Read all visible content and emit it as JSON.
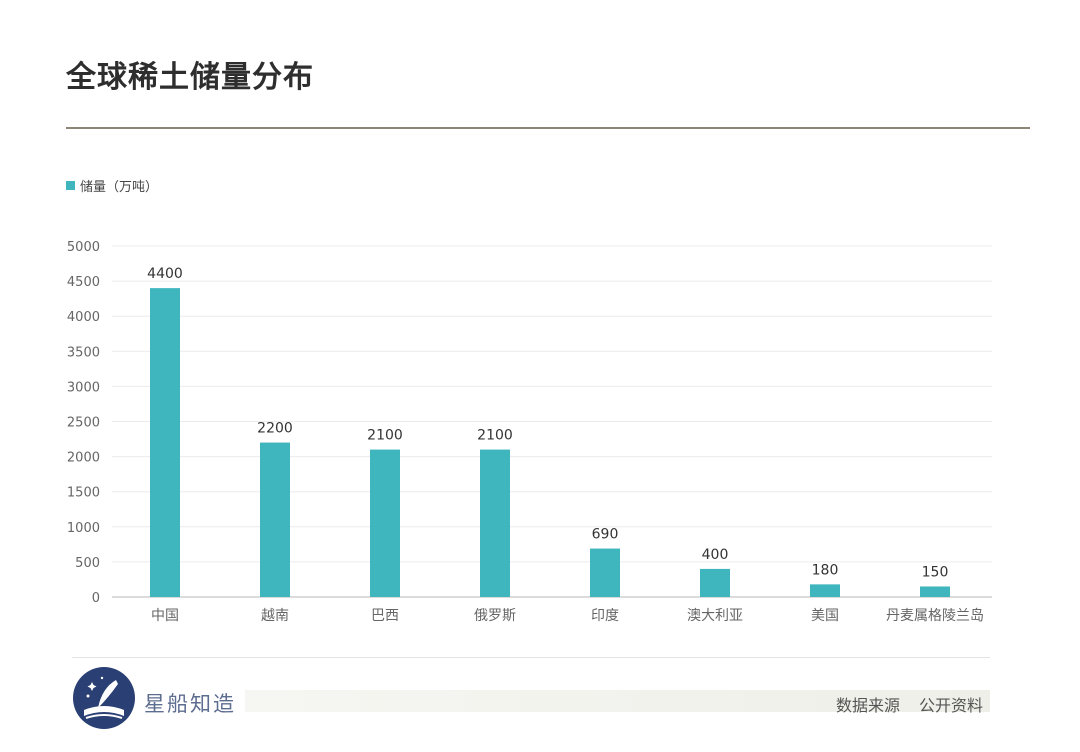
{
  "title": "全球稀土储量分布",
  "colors": {
    "bar": "#3fb6be",
    "grid": "#ececec",
    "axis": "#cfcfcf",
    "tick": "#666666",
    "logo": "#2a3f74"
  },
  "chart_data": {
    "type": "bar",
    "categories": [
      "中国",
      "越南",
      "巴西",
      "俄罗斯",
      "印度",
      "澳大利亚",
      "美国",
      "丹麦属格陵兰岛"
    ],
    "series": [
      {
        "name": "储量（万吨）",
        "values": [
          4400,
          2200,
          2100,
          2100,
          690,
          400,
          180,
          150
        ]
      }
    ],
    "data_labels": [
      "4400",
      "2200",
      "2100",
      "2100",
      "690",
      "400",
      "180",
      "150"
    ],
    "ylim": [
      0,
      5000
    ],
    "yticks": [
      0,
      500,
      1000,
      1500,
      2000,
      2500,
      3000,
      3500,
      4000,
      4500,
      5000
    ],
    "grid": true,
    "legend_position": "top-left"
  },
  "footer": {
    "brand": "星船知造",
    "logo_icon": "starship-quill-logo",
    "source_label": "数据来源",
    "source_value": "公开资料"
  }
}
